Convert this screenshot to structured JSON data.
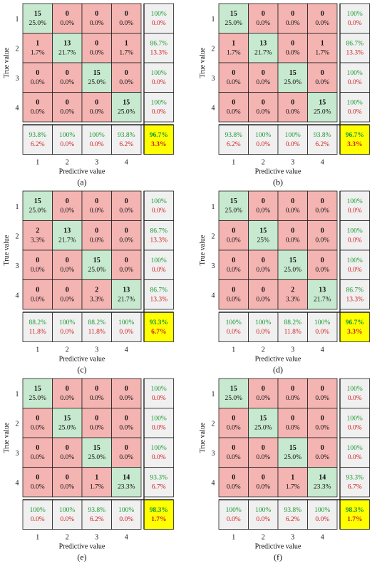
{
  "colors": {
    "correct": "#c7e9cf",
    "wrong": "#f4b4b2",
    "summary": "#f0f0f0",
    "overall": "#ffff00",
    "green_text": "#1a9a32",
    "red_text": "#d02020",
    "grid": "#222222"
  },
  "chart_data": [
    {
      "type": "heatmap",
      "panel_label": "(a)",
      "xlabel": "Predictive value",
      "ylabel": "True value",
      "x_ticks": [
        "1",
        "2",
        "3",
        "4"
      ],
      "y_ticks": [
        "1",
        "2",
        "3",
        "4"
      ],
      "counts": [
        [
          15,
          0,
          0,
          0
        ],
        [
          1,
          13,
          0,
          1
        ],
        [
          0,
          0,
          15,
          0
        ],
        [
          0,
          0,
          0,
          15
        ]
      ],
      "percents": [
        [
          "25.0%",
          "0.0%",
          "0.0%",
          "0.0%"
        ],
        [
          "1.7%",
          "21.7%",
          "0.0%",
          "1.7%"
        ],
        [
          "0.0%",
          "0.0%",
          "25.0%",
          "0.0%"
        ],
        [
          "0.0%",
          "0.0%",
          "0.0%",
          "25.0%"
        ]
      ],
      "row_summary": [
        [
          "100%",
          "0.0%"
        ],
        [
          "86.7%",
          "13.3%"
        ],
        [
          "100%",
          "0.0%"
        ],
        [
          "100%",
          "0.0%"
        ]
      ],
      "col_summary": [
        [
          "93.8%",
          "6.2%"
        ],
        [
          "100%",
          "0.0%"
        ],
        [
          "100%",
          "0.0%"
        ],
        [
          "93.8%",
          "6.2%"
        ]
      ],
      "overall": [
        "96.7%",
        "3.3%"
      ]
    },
    {
      "type": "heatmap",
      "panel_label": "(b)",
      "xlabel": "Predictive value",
      "ylabel": "True value",
      "x_ticks": [
        "1",
        "2",
        "3",
        "4"
      ],
      "y_ticks": [
        "1",
        "2",
        "3",
        "4"
      ],
      "counts": [
        [
          15,
          0,
          0,
          0
        ],
        [
          1,
          13,
          0,
          1
        ],
        [
          0,
          0,
          15,
          0
        ],
        [
          0,
          0,
          0,
          15
        ]
      ],
      "percents": [
        [
          "25.0%",
          "0.0%",
          "0.0%",
          "0.0%"
        ],
        [
          "1.7%",
          "21.7%",
          "0.0%",
          "1.7%"
        ],
        [
          "0.0%",
          "0.0%",
          "25.0%",
          "0.0%"
        ],
        [
          "0.0%",
          "0.0%",
          "0.0%",
          "25.0%"
        ]
      ],
      "row_summary": [
        [
          "100%",
          "0.0%"
        ],
        [
          "86.7%",
          "13.3%"
        ],
        [
          "100%",
          "0.0%"
        ],
        [
          "100%",
          "0.0%"
        ]
      ],
      "col_summary": [
        [
          "93.8%",
          "6.2%"
        ],
        [
          "100%",
          "0.0%"
        ],
        [
          "100%",
          "0.0%"
        ],
        [
          "93.8%",
          "6.2%"
        ]
      ],
      "overall": [
        "96.7%",
        "3.3%"
      ]
    },
    {
      "type": "heatmap",
      "panel_label": "(c)",
      "xlabel": "Predictive value",
      "ylabel": "True value",
      "x_ticks": [
        "1",
        "2",
        "3",
        "4"
      ],
      "y_ticks": [
        "1",
        "2",
        "3",
        "4"
      ],
      "counts": [
        [
          15,
          0,
          0,
          0
        ],
        [
          2,
          13,
          0,
          0
        ],
        [
          0,
          0,
          15,
          0
        ],
        [
          0,
          0,
          2,
          13
        ]
      ],
      "percents": [
        [
          "25.0%",
          "0.0%",
          "0.0%",
          "0.0%"
        ],
        [
          "3.3%",
          "21.7%",
          "0.0%",
          "0.0%"
        ],
        [
          "0.0%",
          "0.0%",
          "25.0%",
          "0.0%"
        ],
        [
          "0.0%",
          "0.0%",
          "3.3%",
          "21.7%"
        ]
      ],
      "row_summary": [
        [
          "100%",
          "0.0%"
        ],
        [
          "86.7%",
          "13.3%"
        ],
        [
          "100%",
          "0.0%"
        ],
        [
          "86.7%",
          "13.3%"
        ]
      ],
      "col_summary": [
        [
          "88.2%",
          "11.8%"
        ],
        [
          "100%",
          "0.0%"
        ],
        [
          "88.2%",
          "11.8%"
        ],
        [
          "100%",
          "0.0%"
        ]
      ],
      "overall": [
        "93.3%",
        "6.7%"
      ]
    },
    {
      "type": "heatmap",
      "panel_label": "(d)",
      "xlabel": "Predictive value",
      "ylabel": "True value",
      "x_ticks": [
        "1",
        "2",
        "3",
        "4"
      ],
      "y_ticks": [
        "1",
        "2",
        "3",
        "4"
      ],
      "counts": [
        [
          15,
          0,
          0,
          0
        ],
        [
          0,
          15,
          0,
          0
        ],
        [
          0,
          0,
          15,
          0
        ],
        [
          0,
          0,
          2,
          13
        ]
      ],
      "percents": [
        [
          "25.0%",
          "0.0%",
          "0.0%",
          "0.0%"
        ],
        [
          "0.0%",
          "25%",
          "0.0%",
          "0.0%"
        ],
        [
          "0.0%",
          "0.0%",
          "25.0%",
          "0.0%"
        ],
        [
          "0.0%",
          "0.0%",
          "3.3%",
          "21.7%"
        ]
      ],
      "row_summary": [
        [
          "100%",
          "0.0%"
        ],
        [
          "100%",
          "0.0%"
        ],
        [
          "100%",
          "0.0%"
        ],
        [
          "86.7%",
          "13.3%"
        ]
      ],
      "col_summary": [
        [
          "100%",
          "0.0%"
        ],
        [
          "100%",
          "0.0%"
        ],
        [
          "88.2%",
          "11.8%"
        ],
        [
          "100%",
          "0.0%"
        ]
      ],
      "overall": [
        "96.7%",
        "3.3%"
      ]
    },
    {
      "type": "heatmap",
      "panel_label": "(e)",
      "xlabel": "Predictive value",
      "ylabel": "True value",
      "x_ticks": [
        "1",
        "2",
        "3",
        "4"
      ],
      "y_ticks": [
        "1",
        "2",
        "3",
        "4"
      ],
      "counts": [
        [
          15,
          0,
          0,
          0
        ],
        [
          0,
          15,
          0,
          0
        ],
        [
          0,
          0,
          15,
          0
        ],
        [
          0,
          0,
          1,
          14
        ]
      ],
      "percents": [
        [
          "25.0%",
          "0.0%",
          "0.0%",
          "0.0%"
        ],
        [
          "0.0%",
          "25.0%",
          "0.0%",
          "0.0%"
        ],
        [
          "0.0%",
          "0.0%",
          "25.0%",
          "0.0%"
        ],
        [
          "0.0%",
          "0.0%",
          "1.7%",
          "23.3%"
        ]
      ],
      "row_summary": [
        [
          "100%",
          "0.0%"
        ],
        [
          "100%",
          "0.0%"
        ],
        [
          "100%",
          "0.0%"
        ],
        [
          "93.3%",
          "6.7%"
        ]
      ],
      "col_summary": [
        [
          "100%",
          "0.0%"
        ],
        [
          "100%",
          "0.0%"
        ],
        [
          "93.8%",
          "6.2%"
        ],
        [
          "100%",
          "0.0%"
        ]
      ],
      "overall": [
        "98.3%",
        "1.7%"
      ]
    },
    {
      "type": "heatmap",
      "panel_label": "(f)",
      "xlabel": "Predictive value",
      "ylabel": "True value",
      "x_ticks": [
        "1",
        "2",
        "3",
        "4"
      ],
      "y_ticks": [
        "1",
        "2",
        "3",
        "4"
      ],
      "counts": [
        [
          15,
          0,
          0,
          0
        ],
        [
          0,
          15,
          0,
          0
        ],
        [
          0,
          0,
          15,
          0
        ],
        [
          0,
          0,
          1,
          14
        ]
      ],
      "percents": [
        [
          "25.0%",
          "0.0%",
          "0.0%",
          "0.0%"
        ],
        [
          "0.0%",
          "25.0%",
          "0.0%",
          "0.0%"
        ],
        [
          "0.0%",
          "0.0%",
          "25.0%",
          "0.0%"
        ],
        [
          "0.0%",
          "0.0%",
          "1.7%",
          "23.3%"
        ]
      ],
      "row_summary": [
        [
          "100%",
          "0.0%"
        ],
        [
          "100%",
          "0.0%"
        ],
        [
          "100%",
          "0.0%"
        ],
        [
          "93.3%",
          "6.7%"
        ]
      ],
      "col_summary": [
        [
          "100%",
          "0.0%"
        ],
        [
          "100%",
          "0.0%"
        ],
        [
          "93.8%",
          "6.2%"
        ],
        [
          "100%",
          "0.0%"
        ]
      ],
      "overall": [
        "98.3%",
        "1.7%"
      ]
    }
  ]
}
